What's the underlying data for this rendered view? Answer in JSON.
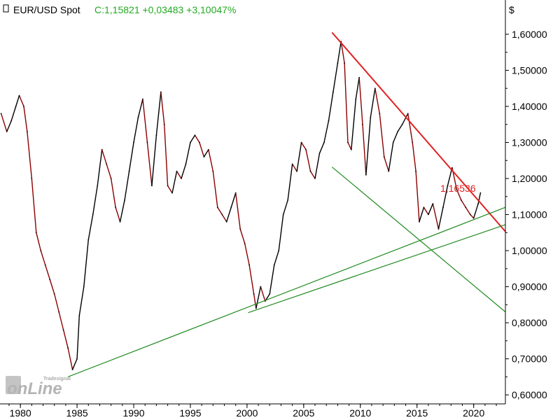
{
  "header": {
    "instrument": "EUR/USD Spot",
    "quote": "C:1,15821 +0,03483 +3,10047%"
  },
  "watermark": {
    "brand": "Tradesignal",
    "product": "onLine"
  },
  "colors": {
    "price": "#000000",
    "price_down": "#8b0000",
    "resistance": "#e02020",
    "support": "#228b22",
    "quote": "#22aa22"
  },
  "chart_data": {
    "type": "line",
    "title": "EUR/USD Spot",
    "ylabel": "$",
    "xlim": [
      1978.2,
      2022.8
    ],
    "ylim": [
      0.575,
      1.695
    ],
    "x_ticks": [
      1980,
      1985,
      1990,
      1995,
      2000,
      2005,
      2010,
      2015,
      2020
    ],
    "x_tick_labels": [
      "1980",
      "1985",
      "1990",
      "1995",
      "2000",
      "2005",
      "2010",
      "2015",
      "2020"
    ],
    "y_ticks": [
      0.6,
      0.7,
      0.8,
      0.9,
      1.0,
      1.1,
      1.2,
      1.3,
      1.4,
      1.5,
      1.6
    ],
    "y_tick_labels": [
      "0,60000",
      "0,70000",
      "0,80000",
      "0,90000",
      "1,00000",
      "1,10000",
      "1,20000",
      "1,30000",
      "1,40000",
      "1,50000",
      "1,60000"
    ],
    "grid": false,
    "series": [
      {
        "x": [
          1978.3,
          1978.8,
          1979.2,
          1979.6,
          1979.9,
          1980.3,
          1980.6,
          1981.0,
          1981.4,
          1981.8,
          1982.2,
          1982.6,
          1983.0,
          1983.4,
          1983.8,
          1984.2,
          1984.6,
          1985.0,
          1985.2,
          1985.6,
          1986.0,
          1986.4,
          1986.8,
          1987.2,
          1987.6,
          1988.0,
          1988.4,
          1988.8,
          1989.2,
          1989.6,
          1990.0,
          1990.4,
          1990.8,
          1991.2,
          1991.6,
          1992.0,
          1992.4,
          1992.7,
          1993.0,
          1993.4,
          1993.8,
          1994.2,
          1994.6,
          1995.0,
          1995.4,
          1995.8,
          1996.2,
          1996.6,
          1997.0,
          1997.4,
          1997.8,
          1998.2,
          1998.6,
          1999.0,
          1999.4,
          1999.8,
          2000.2,
          2000.6,
          2000.8,
          2001.2,
          2001.6,
          2002.0,
          2002.4,
          2002.8,
          2003.2,
          2003.6,
          2004.0,
          2004.4,
          2004.8,
          2005.2,
          2005.6,
          2006.0,
          2006.4,
          2006.8,
          2007.2,
          2007.6,
          2008.0,
          2008.3,
          2008.6,
          2008.9,
          2009.2,
          2009.6,
          2009.9,
          2010.2,
          2010.5,
          2010.9,
          2011.3,
          2011.7,
          2012.1,
          2012.5,
          2012.9,
          2013.3,
          2013.7,
          2014.2,
          2014.6,
          2014.9,
          2015.2,
          2015.6,
          2016.0,
          2016.4,
          2016.9,
          2017.3,
          2017.7,
          2018.1,
          2018.5,
          2018.9,
          2019.3,
          2019.7,
          2020.0,
          2020.4,
          2020.6
        ],
        "values": [
          1.38,
          1.33,
          1.36,
          1.4,
          1.43,
          1.4,
          1.33,
          1.2,
          1.05,
          1.0,
          0.96,
          0.92,
          0.88,
          0.83,
          0.78,
          0.73,
          0.67,
          0.7,
          0.82,
          0.9,
          1.03,
          1.1,
          1.18,
          1.28,
          1.24,
          1.2,
          1.12,
          1.08,
          1.14,
          1.22,
          1.3,
          1.37,
          1.42,
          1.3,
          1.18,
          1.32,
          1.44,
          1.35,
          1.18,
          1.16,
          1.22,
          1.2,
          1.24,
          1.3,
          1.32,
          1.3,
          1.26,
          1.28,
          1.22,
          1.12,
          1.1,
          1.08,
          1.12,
          1.16,
          1.06,
          1.02,
          0.96,
          0.88,
          0.84,
          0.9,
          0.86,
          0.88,
          0.96,
          1.0,
          1.1,
          1.14,
          1.24,
          1.22,
          1.3,
          1.28,
          1.22,
          1.2,
          1.27,
          1.3,
          1.36,
          1.44,
          1.52,
          1.58,
          1.52,
          1.3,
          1.28,
          1.42,
          1.48,
          1.35,
          1.21,
          1.37,
          1.45,
          1.38,
          1.26,
          1.22,
          1.3,
          1.33,
          1.35,
          1.38,
          1.3,
          1.22,
          1.08,
          1.12,
          1.1,
          1.13,
          1.06,
          1.12,
          1.18,
          1.23,
          1.17,
          1.14,
          1.12,
          1.1,
          1.09,
          1.13,
          1.16
        ]
      }
    ],
    "trendlines": [
      {
        "name": "resistance",
        "color": "#e02020",
        "points": [
          [
            2007.5,
            1.605
          ],
          [
            2022.8,
            1.053
          ]
        ]
      },
      {
        "name": "support-channel",
        "color": "#228b22",
        "points": [
          [
            2007.5,
            1.232
          ],
          [
            2022.8,
            0.83
          ]
        ]
      },
      {
        "name": "support-from-1985",
        "color": "#228b22",
        "points": [
          [
            1984.2,
            0.65
          ],
          [
            2022.8,
            1.12
          ]
        ]
      },
      {
        "name": "support-from-2000",
        "color": "#228b22",
        "points": [
          [
            2000.1,
            0.828
          ],
          [
            2022.8,
            1.072
          ]
        ]
      }
    ],
    "annotations": [
      {
        "text": "1,16536",
        "x": 2020.7,
        "y": 1.165,
        "color": "#e02020"
      }
    ]
  }
}
